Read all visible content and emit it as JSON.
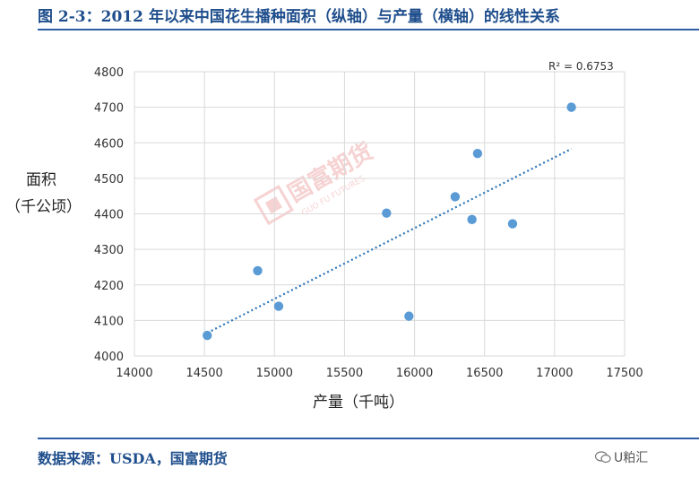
{
  "figure": {
    "title": "图 2-3：2012 年以来中国花生播种面积（纵轴）与产量（横轴）的线性关系",
    "source": "数据来源：USDA，国富期货",
    "badge": "U粕汇"
  },
  "watermark": {
    "text": "国富期货",
    "subtext": "GUO FU FUTURES"
  },
  "chart_data": {
    "type": "scatter",
    "xlabel": "产量（千吨）",
    "ylabel_line1": "面积",
    "ylabel_line2": "（千公顷）",
    "xlim": [
      14000,
      17500
    ],
    "ylim": [
      4000,
      4800
    ],
    "xticks": [
      14000,
      14500,
      15000,
      15500,
      16000,
      16500,
      17000,
      17500
    ],
    "yticks": [
      4000,
      4100,
      4200,
      4300,
      4400,
      4500,
      4600,
      4700,
      4800
    ],
    "grid": "vertical-and-horizontal",
    "points": [
      {
        "x": 14520,
        "y": 4058
      },
      {
        "x": 14880,
        "y": 4240
      },
      {
        "x": 15030,
        "y": 4140
      },
      {
        "x": 15800,
        "y": 4402
      },
      {
        "x": 15960,
        "y": 4112
      },
      {
        "x": 16290,
        "y": 4448
      },
      {
        "x": 16410,
        "y": 4384
      },
      {
        "x": 16450,
        "y": 4570
      },
      {
        "x": 16700,
        "y": 4372
      },
      {
        "x": 17120,
        "y": 4700
      }
    ],
    "trendline": {
      "type": "linear",
      "x_start": 14520,
      "y_start": 4065,
      "x_end": 17120,
      "y_end": 4583,
      "r_squared_label": "R² = 0.6753"
    },
    "colors": {
      "point": "#5b9bd5",
      "trend": "#2e75b6",
      "grid": "#d9d9d9"
    }
  }
}
